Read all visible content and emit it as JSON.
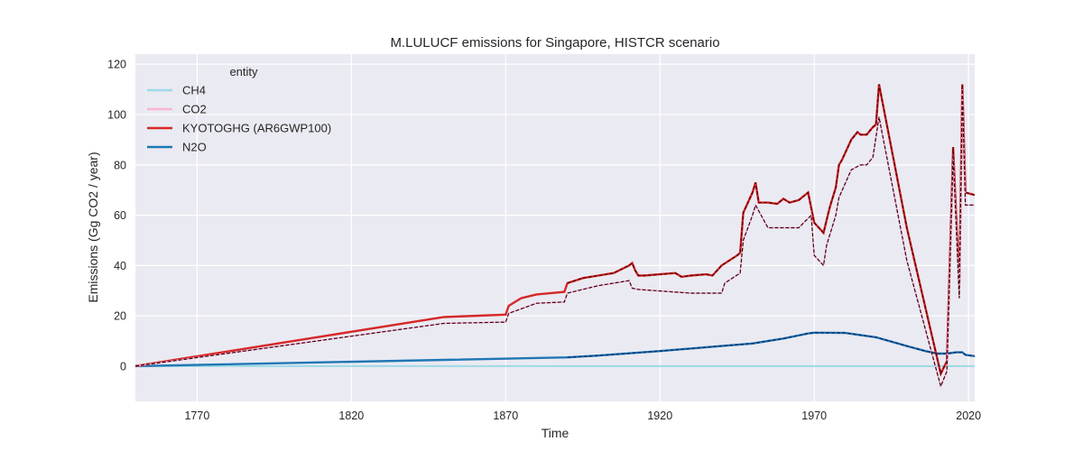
{
  "chart_data": {
    "type": "line",
    "title": "M.LULUCF emissions for Singapore, HISTCR scenario",
    "xlabel": "Time",
    "ylabel": "Emissions (Gg CO2 / year)",
    "xlim": [
      1750,
      2022
    ],
    "ylim": [
      -14,
      124
    ],
    "xticks": [
      1770,
      1820,
      1870,
      1920,
      1970,
      2020
    ],
    "yticks": [
      0,
      20,
      40,
      60,
      80,
      100,
      120
    ],
    "grid": true,
    "legend": {
      "title": "entity",
      "placement": "top-left",
      "entries": [
        {
          "label": "CH4",
          "color": "#9edae5"
        },
        {
          "label": "CO2",
          "color": "#f7b6d2"
        },
        {
          "label": "KYOTOGHG (AR6GWP100)",
          "color": "#d62728"
        },
        {
          "label": "N2O",
          "color": "#1f77b4"
        }
      ]
    },
    "series": [
      {
        "name": "CH4",
        "color": "#9edae5",
        "x": [
          1750,
          2022
        ],
        "y": [
          0,
          0
        ]
      },
      {
        "name": "CO2",
        "color": "#f7b6d2",
        "style": "dashed",
        "x": [
          1750,
          1850,
          1870,
          1871,
          1880,
          1889,
          1890,
          1900,
          1905,
          1910,
          1911,
          1913,
          1930,
          1935,
          1940,
          1941,
          1946,
          1947,
          1950,
          1951,
          1955,
          1960,
          1965,
          1969,
          1970,
          1973,
          1974,
          1977,
          1978,
          1982,
          1985,
          1987,
          1989,
          1991,
          2000,
          2011,
          2013,
          2015,
          2017,
          2018,
          2019,
          2022
        ],
        "y": [
          0,
          17,
          17.5,
          21,
          25,
          25.5,
          29,
          32,
          33,
          34,
          31,
          30.5,
          29,
          29,
          29,
          33,
          37,
          50,
          60,
          64,
          55,
          55,
          55,
          60,
          44,
          40,
          48,
          60,
          67,
          78,
          80,
          80,
          83,
          99,
          42,
          -8,
          -2,
          84,
          27,
          110,
          64,
          64
        ]
      },
      {
        "name": "KYOTOGHG (AR6GWP100)",
        "color": "#d62728",
        "x": [
          1750,
          1850,
          1870,
          1871,
          1875,
          1880,
          1889,
          1890,
          1895,
          1900,
          1905,
          1910,
          1911,
          1912,
          1913,
          1915,
          1920,
          1925,
          1927,
          1930,
          1935,
          1937,
          1940,
          1945,
          1946,
          1947,
          1950,
          1951,
          1952,
          1955,
          1958,
          1960,
          1962,
          1965,
          1968,
          1970,
          1973,
          1974,
          1975,
          1977,
          1978,
          1979,
          1982,
          1984,
          1985,
          1987,
          1989,
          1990,
          1991,
          2000,
          2011,
          2013,
          2015,
          2017,
          2018,
          2019,
          2022
        ],
        "y": [
          0,
          19.5,
          20.5,
          24,
          27,
          28.5,
          29.5,
          33,
          35,
          36,
          37,
          40,
          41,
          38,
          36,
          36,
          36.5,
          37,
          35.5,
          36,
          36.5,
          36,
          40,
          44,
          45,
          61,
          69,
          73,
          65,
          65,
          64.5,
          66.5,
          65,
          66,
          69,
          57,
          53,
          58,
          63,
          71,
          80,
          82,
          90,
          93,
          92,
          92,
          95,
          96,
          112,
          55,
          -3,
          2,
          87,
          32,
          112,
          69,
          68
        ]
      },
      {
        "name": "N2O",
        "color": "#1f77b4",
        "x": [
          1750,
          1850,
          1890,
          1900,
          1920,
          1940,
          1950,
          1960,
          1968,
          1970,
          1980,
          1990,
          2000,
          2006,
          2010,
          2013,
          2016,
          2018,
          2019,
          2022
        ],
        "y": [
          0,
          2.5,
          3.5,
          4.2,
          6,
          8,
          9,
          11,
          13,
          13.3,
          13.2,
          11.5,
          8,
          6,
          5,
          5,
          5.5,
          5.5,
          4.5,
          4
        ]
      }
    ]
  }
}
